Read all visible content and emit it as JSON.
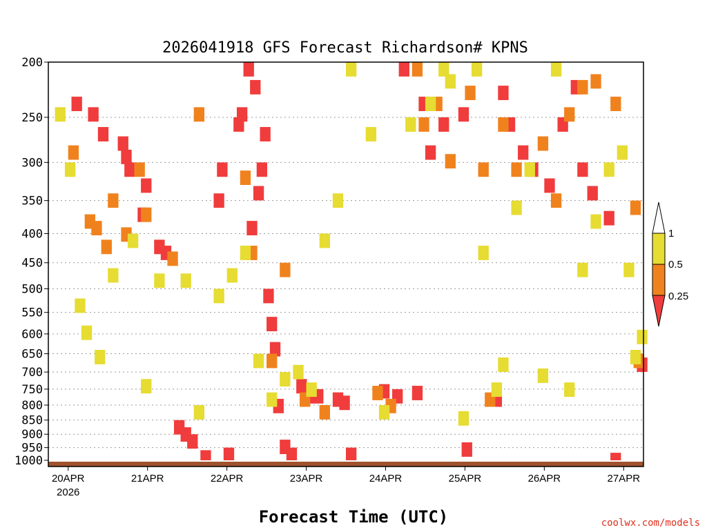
{
  "chart_data": {
    "type": "heatmap",
    "title": "2026041918 GFS Forecast Richardson# KPNS",
    "xlabel": "Forecast Time (UTC)",
    "ylabel": "",
    "y_axis": {
      "scale": "log",
      "range": [
        1000,
        200
      ],
      "ticks": [
        200,
        250,
        300,
        350,
        400,
        450,
        500,
        550,
        600,
        650,
        700,
        750,
        800,
        850,
        900,
        950,
        1000
      ]
    },
    "x_axis": {
      "ticks": [
        {
          "label": "20APR",
          "sublabel": "2026",
          "hour": 6
        },
        {
          "label": "21APR",
          "hour": 30
        },
        {
          "label": "22APR",
          "hour": 54
        },
        {
          "label": "23APR",
          "hour": 78
        },
        {
          "label": "24APR",
          "hour": 102
        },
        {
          "label": "25APR",
          "hour": 126
        },
        {
          "label": "26APR",
          "hour": 150
        },
        {
          "label": "27APR",
          "hour": 174
        }
      ],
      "range_hours": [
        0,
        180
      ]
    },
    "colorbar": {
      "colors": [
        "#f03c3c",
        "#f0821e",
        "#e6dc32"
      ],
      "bounds": [
        "0.25",
        "0.5",
        "1"
      ],
      "extend": "both"
    },
    "series": [
      {
        "name": "Ri < 0.25",
        "color": "#f03c3c",
        "cells": [
          [
            7,
            230
          ],
          [
            12,
            240
          ],
          [
            15,
            260
          ],
          [
            21,
            270
          ],
          [
            22,
            285
          ],
          [
            23,
            300
          ],
          [
            27,
            360
          ],
          [
            28,
            320
          ],
          [
            32,
            410
          ],
          [
            34,
            420
          ],
          [
            38,
            850
          ],
          [
            40,
            875
          ],
          [
            42,
            900
          ],
          [
            46,
            960
          ],
          [
            50,
            340
          ],
          [
            51,
            300
          ],
          [
            53,
            950
          ],
          [
            56,
            250
          ],
          [
            57,
            240
          ],
          [
            59,
            200
          ],
          [
            60,
            380
          ],
          [
            61,
            215
          ],
          [
            62,
            330
          ],
          [
            63,
            300
          ],
          [
            64,
            260
          ],
          [
            65,
            500
          ],
          [
            66,
            560
          ],
          [
            67,
            620
          ],
          [
            68,
            780
          ],
          [
            70,
            920
          ],
          [
            72,
            950
          ],
          [
            75,
            720
          ],
          [
            77,
            750
          ],
          [
            80,
            750
          ],
          [
            86,
            760
          ],
          [
            88,
            770
          ],
          [
            90,
            950
          ],
          [
            100,
            735
          ],
          [
            104,
            750
          ],
          [
            110,
            740
          ],
          [
            106,
            200
          ],
          [
            112,
            230
          ],
          [
            114,
            280
          ],
          [
            118,
            250
          ],
          [
            124,
            240
          ],
          [
            125,
            930
          ],
          [
            134,
            760
          ],
          [
            136,
            220
          ],
          [
            138,
            250
          ],
          [
            142,
            280
          ],
          [
            145,
            300
          ],
          [
            150,
            320
          ],
          [
            154,
            250
          ],
          [
            158,
            215
          ],
          [
            160,
            300
          ],
          [
            163,
            330
          ],
          [
            168,
            365
          ],
          [
            170,
            970
          ],
          [
            178,
            660
          ]
        ]
      },
      {
        "name": "0.25 < Ri < 0.5",
        "color": "#f0821e",
        "cells": [
          [
            6,
            280
          ],
          [
            11,
            370
          ],
          [
            13,
            380
          ],
          [
            16,
            410
          ],
          [
            18,
            340
          ],
          [
            22,
            390
          ],
          [
            26,
            300
          ],
          [
            28,
            360
          ],
          [
            36,
            430
          ],
          [
            44,
            240
          ],
          [
            58,
            310
          ],
          [
            60,
            420
          ],
          [
            66,
            650
          ],
          [
            70,
            450
          ],
          [
            76,
            760
          ],
          [
            82,
            800
          ],
          [
            98,
            740
          ],
          [
            102,
            780
          ],
          [
            110,
            200
          ],
          [
            112,
            250
          ],
          [
            116,
            230
          ],
          [
            120,
            290
          ],
          [
            126,
            220
          ],
          [
            130,
            300
          ],
          [
            132,
            760
          ],
          [
            136,
            250
          ],
          [
            140,
            300
          ],
          [
            148,
            270
          ],
          [
            152,
            340
          ],
          [
            156,
            240
          ],
          [
            160,
            215
          ],
          [
            164,
            210
          ],
          [
            170,
            230
          ],
          [
            176,
            350
          ],
          [
            177,
            650
          ]
        ]
      },
      {
        "name": "0.5 < Ri < 1",
        "color": "#e6dc32",
        "cells": [
          [
            2,
            240
          ],
          [
            5,
            300
          ],
          [
            8,
            520
          ],
          [
            10,
            580
          ],
          [
            14,
            640
          ],
          [
            18,
            460
          ],
          [
            24,
            400
          ],
          [
            28,
            720
          ],
          [
            32,
            470
          ],
          [
            40,
            470
          ],
          [
            44,
            800
          ],
          [
            50,
            500
          ],
          [
            54,
            460
          ],
          [
            58,
            420
          ],
          [
            62,
            650
          ],
          [
            66,
            760
          ],
          [
            70,
            700
          ],
          [
            74,
            680
          ],
          [
            78,
            730
          ],
          [
            82,
            400
          ],
          [
            86,
            340
          ],
          [
            90,
            200
          ],
          [
            96,
            260
          ],
          [
            100,
            800
          ],
          [
            108,
            250
          ],
          [
            114,
            230
          ],
          [
            118,
            200
          ],
          [
            120,
            210
          ],
          [
            124,
            820
          ],
          [
            128,
            200
          ],
          [
            130,
            420
          ],
          [
            134,
            730
          ],
          [
            136,
            660
          ],
          [
            140,
            350
          ],
          [
            144,
            300
          ],
          [
            148,
            690
          ],
          [
            152,
            200
          ],
          [
            156,
            730
          ],
          [
            160,
            450
          ],
          [
            164,
            370
          ],
          [
            168,
            300
          ],
          [
            172,
            280
          ],
          [
            174,
            450
          ],
          [
            176,
            640
          ],
          [
            178,
            590
          ]
        ]
      }
    ]
  },
  "credit": "coolwx.com/models"
}
